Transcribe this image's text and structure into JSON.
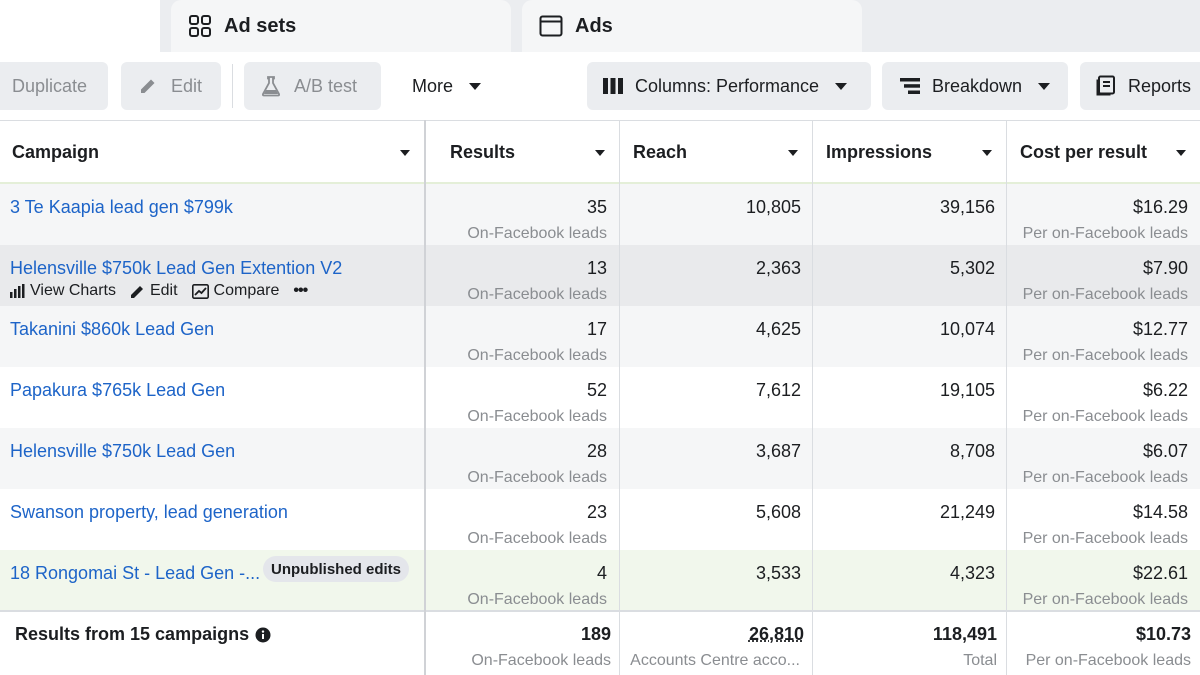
{
  "tabs": {
    "adsets": "Ad sets",
    "ads": "Ads"
  },
  "toolbar": {
    "duplicate": "Duplicate",
    "edit": "Edit",
    "ab_test": "A/B test",
    "more": "More",
    "columns": "Columns: Performance",
    "breakdown": "Breakdown",
    "reports": "Reports"
  },
  "table": {
    "headers": {
      "campaign": "Campaign",
      "results": "Results",
      "reach": "Reach",
      "impressions": "Impressions",
      "cost": "Cost per result"
    },
    "rows": [
      {
        "name": "3 Te Kaapia lead gen $799k",
        "results": "35",
        "results_sub": "On-Facebook leads",
        "reach": "10,805",
        "impressions": "39,156",
        "cost": "$16.29",
        "cost_sub": "Per on-Facebook leads",
        "bg": "#f5f6f7"
      },
      {
        "name": "Helensville $750k Lead Gen Extention V2",
        "results": "13",
        "results_sub": "On-Facebook leads",
        "reach": "2,363",
        "impressions": "5,302",
        "cost": "$7.90",
        "cost_sub": "Per on-Facebook leads",
        "bg": "#e9eaec",
        "actions": {
          "view_charts": "View Charts",
          "edit": "Edit",
          "compare": "Compare",
          "more": "•••"
        }
      },
      {
        "name": "Takanini $860k Lead Gen",
        "results": "17",
        "results_sub": "On-Facebook leads",
        "reach": "4,625",
        "impressions": "10,074",
        "cost": "$12.77",
        "cost_sub": "Per on-Facebook leads",
        "bg": "#f5f6f7"
      },
      {
        "name": "Papakura $765k Lead Gen",
        "results": "52",
        "results_sub": "On-Facebook leads",
        "reach": "7,612",
        "impressions": "19,105",
        "cost": "$6.22",
        "cost_sub": "Per on-Facebook leads",
        "bg": "#ffffff"
      },
      {
        "name": "Helensville $750k Lead Gen",
        "results": "28",
        "results_sub": "On-Facebook leads",
        "reach": "3,687",
        "impressions": "8,708",
        "cost": "$6.07",
        "cost_sub": "Per on-Facebook leads",
        "bg": "#f5f6f7"
      },
      {
        "name": "Swanson property, lead generation",
        "results": "23",
        "results_sub": "On-Facebook leads",
        "reach": "5,608",
        "impressions": "21,249",
        "cost": "$14.58",
        "cost_sub": "Per on-Facebook leads",
        "bg": "#ffffff"
      },
      {
        "name": "18 Rongomai St - Lead Gen -...",
        "badge": "Unpublished edits",
        "results": "4",
        "results_sub": "On-Facebook leads",
        "reach": "3,533",
        "impressions": "4,323",
        "cost": "$22.61",
        "cost_sub": "Per on-Facebook leads",
        "bg": "#f1f7ec"
      }
    ],
    "footer": {
      "label": "Results from 15 campaigns",
      "results": "189",
      "results_sub": "On-Facebook leads",
      "reach": "26,810",
      "reach_sub": "Accounts Centre acco...",
      "impressions": "118,491",
      "impressions_sub": "Total",
      "cost": "$10.73",
      "cost_sub": "Per on-Facebook leads"
    }
  },
  "colors": {
    "link": "#1d64c8",
    "muted": "#8a8d91",
    "button_bg": "#ebedf0"
  }
}
